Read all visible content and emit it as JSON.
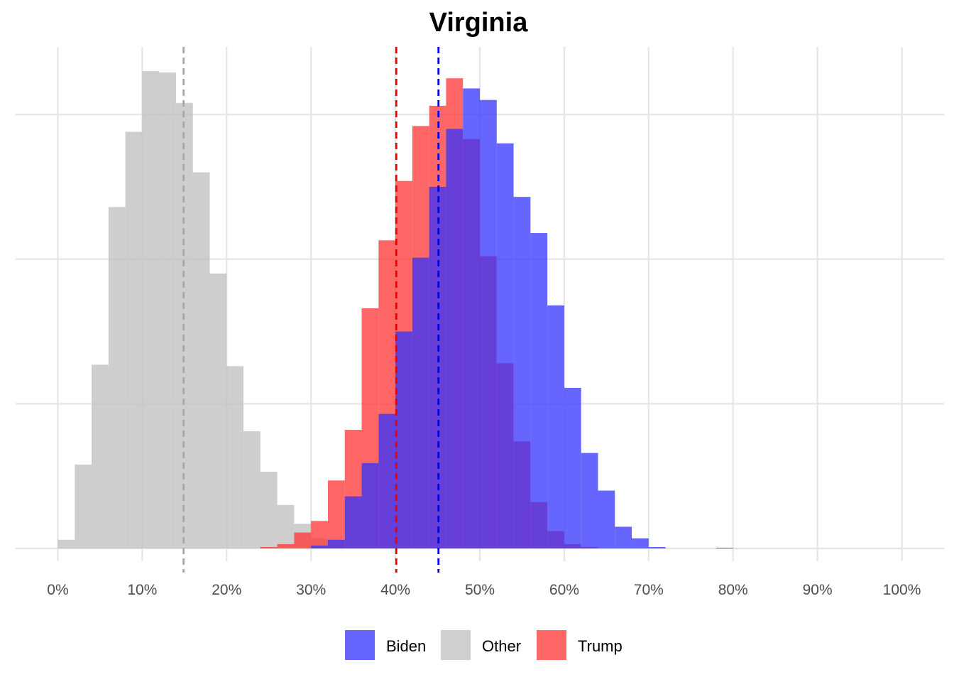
{
  "chart_data": {
    "type": "histogram",
    "title": "Virginia",
    "xlabel": "",
    "ylabel": "",
    "xlim": [
      -0.05,
      1.05
    ],
    "ylim": [
      0,
      0.33
    ],
    "x_ticks": [
      0,
      0.1,
      0.2,
      0.3,
      0.4,
      0.5,
      0.6,
      0.7,
      0.8,
      0.9,
      1.0
    ],
    "x_tick_labels": [
      "0%",
      "10%",
      "20%",
      "30%",
      "40%",
      "50%",
      "60%",
      "70%",
      "80%",
      "90%",
      "100%"
    ],
    "y_gridlines": [
      0,
      0.1,
      0.2,
      0.3
    ],
    "y_tick_labels_shown": false,
    "grid": true,
    "legend_position": "bottom",
    "bin_width": 0.02,
    "bin_start": 0.01,
    "series": [
      {
        "name": "Other",
        "color": "#bebebe",
        "opacity": 0.75,
        "mean_line": 0.149,
        "mean_line_color": "#a9a9a9",
        "values": [
          0.006,
          0.058,
          0.127,
          0.236,
          0.288,
          0.33,
          0.329,
          0.308,
          0.26,
          0.19,
          0.126,
          0.081,
          0.053,
          0.03,
          0.017,
          0.007,
          0.002,
          0,
          0,
          0,
          0,
          0,
          0,
          0,
          0,
          0,
          0,
          0,
          0,
          0,
          0,
          0,
          0,
          0,
          0,
          0,
          0,
          0,
          0,
          0,
          0,
          0,
          0,
          0,
          0,
          0,
          0,
          0,
          0,
          0
        ]
      },
      {
        "name": "Trump",
        "color": "#ff3333",
        "opacity": 0.75,
        "mean_line": 0.401,
        "mean_line_color": "#e60000",
        "values": [
          0,
          0,
          0,
          0,
          0,
          0,
          0,
          0,
          0,
          0,
          0,
          0,
          0.001,
          0.003,
          0.011,
          0.019,
          0.047,
          0.082,
          0.166,
          0.213,
          0.254,
          0.292,
          0.306,
          0.325,
          0.283,
          0.202,
          0.128,
          0.074,
          0.032,
          0.012,
          0.003,
          0.001,
          0,
          0,
          0,
          0,
          0,
          0,
          0,
          0,
          0,
          0,
          0,
          0,
          0,
          0,
          0,
          0,
          0,
          0
        ]
      },
      {
        "name": "Biden",
        "color": "#3333ff",
        "opacity": 0.75,
        "mean_line": 0.451,
        "mean_line_color": "#0000e6",
        "values": [
          0,
          0,
          0,
          0,
          0,
          0,
          0,
          0,
          0,
          0,
          0,
          0,
          0,
          0,
          0,
          0.002,
          0.006,
          0.036,
          0.059,
          0.093,
          0.15,
          0.201,
          0.25,
          0.29,
          0.318,
          0.31,
          0.28,
          0.243,
          0.218,
          0.168,
          0.111,
          0.066,
          0.04,
          0.015,
          0.007,
          0.001,
          0,
          0,
          0,
          0.0005,
          0,
          0,
          0,
          0,
          0,
          0,
          0,
          0,
          0,
          0
        ]
      }
    ],
    "legend": [
      {
        "name": "Biden",
        "color": "#6666ff"
      },
      {
        "name": "Other",
        "color": "#cfcfcf"
      },
      {
        "name": "Trump",
        "color": "#ff6666"
      }
    ]
  }
}
